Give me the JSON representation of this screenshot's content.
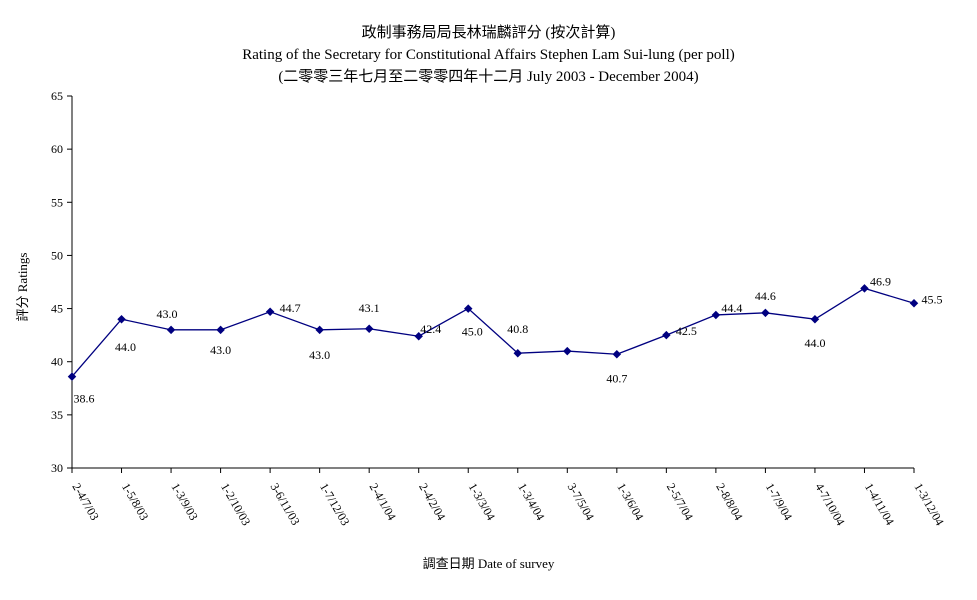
{
  "chart_data": {
    "type": "line",
    "title": "政制事務局局長林瑞麟評分 (按次計算)",
    "subtitle": "Rating of the Secretary for Constitutional Affairs Stephen Lam Sui-lung (per poll)",
    "subtitle2": "(二零零三年七月至二零零四年十二月 July 2003 - December 2004)",
    "xlabel": "調查日期 Date of survey",
    "ylabel": "評分 Ratings",
    "ylim": [
      30,
      65
    ],
    "yticks": [
      30,
      35,
      40,
      45,
      50,
      55,
      60,
      65
    ],
    "grid": false,
    "legend": "none",
    "categories": [
      "2-4/7/03",
      "1-5/8/03",
      "1-3/9/03",
      "1-2/10/03",
      "3-6/11/03",
      "1-7/12/03",
      "2-4/1/04",
      "2-4/2/04",
      "1-3/3/04",
      "1-3/4/04",
      "3-7/5/04",
      "1-3/6/04",
      "2-5/7/04",
      "2-8/8/04",
      "1-7/9/04",
      "4-7/10/04",
      "1-4/11/04",
      "1-3/12/04"
    ],
    "series": [
      {
        "values": [
          38.6,
          44.0,
          43.0,
          43.0,
          44.7,
          43.0,
          43.1,
          42.4,
          45.0,
          40.8,
          41.0,
          40.7,
          42.5,
          44.4,
          44.6,
          44.0,
          46.9,
          45.5
        ],
        "labels": [
          "38.6",
          "44.0",
          "43.0",
          "43.0",
          "44.7",
          "43.0",
          "43.1",
          "42.4",
          "45.0",
          "40.8",
          "",
          "40.7",
          "42.5",
          "44.4",
          "44.6",
          "44.0",
          "46.9",
          "45.5"
        ],
        "color": "#000080"
      }
    ]
  }
}
